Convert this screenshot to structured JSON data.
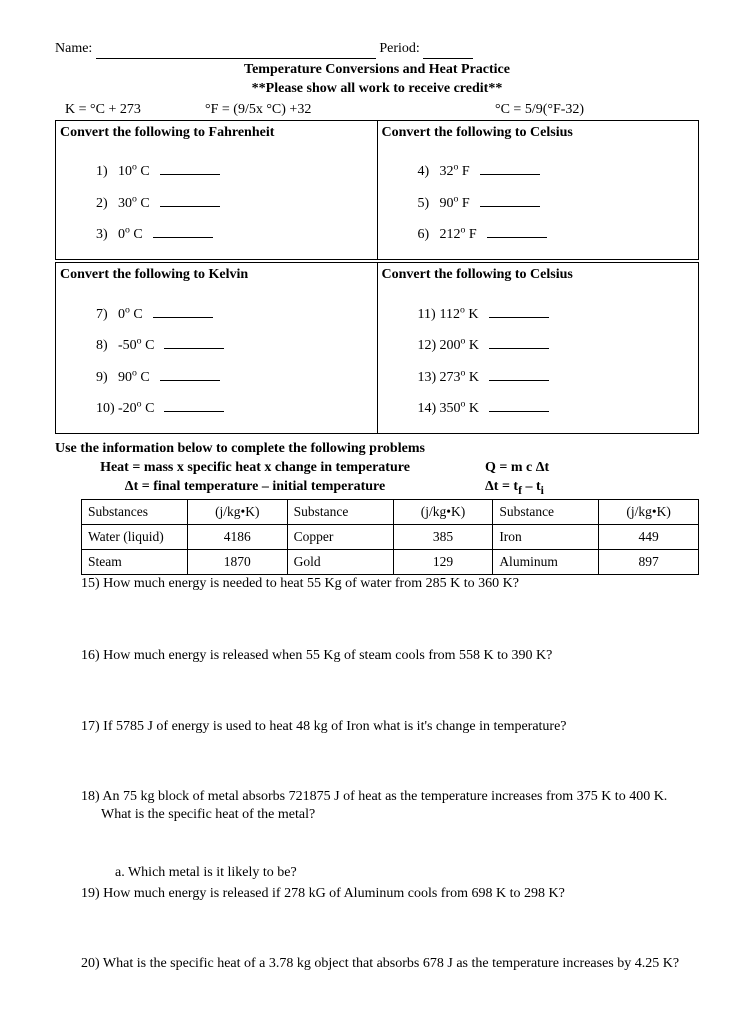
{
  "header": {
    "name_label": "Name:",
    "period_label": "Period:"
  },
  "title": {
    "line1": "Temperature Conversions and Heat Practice",
    "line2": "**Please show all work to receive credit**"
  },
  "formulas": {
    "f1": "K = °C + 273",
    "f2": "°F = (9/5x °C) +32",
    "f3": "°C = 5/9(°F-32)"
  },
  "conversion": {
    "boxes": [
      {
        "left_head": "Convert the following to Fahrenheit",
        "right_head": "Convert the following to Celsius",
        "left_items": [
          {
            "num": "1)",
            "val": "10",
            "unit": "C"
          },
          {
            "num": "2)",
            "val": "30",
            "unit": "C"
          },
          {
            "num": "3)",
            "val": "0",
            "unit": "C"
          }
        ],
        "right_items": [
          {
            "num": "4)",
            "val": "32",
            "unit": "F"
          },
          {
            "num": "5)",
            "val": "90",
            "unit": "F"
          },
          {
            "num": "6)",
            "val": "212",
            "unit": "F"
          }
        ]
      },
      {
        "left_head": "Convert the following to Kelvin",
        "right_head": "Convert the following to Celsius",
        "left_items": [
          {
            "num": "7)",
            "val": "0",
            "unit": "C"
          },
          {
            "num": "8)",
            "val": "-50",
            "unit": "C"
          },
          {
            "num": "9)",
            "val": "90",
            "unit": "C"
          },
          {
            "num": "10)",
            "val": "-20",
            "unit": "C"
          }
        ],
        "right_items": [
          {
            "num": "11)",
            "val": "112",
            "unit": "K"
          },
          {
            "num": "12)",
            "val": "200",
            "unit": "K"
          },
          {
            "num": "13)",
            "val": "273",
            "unit": "K"
          },
          {
            "num": "14)",
            "val": "350",
            "unit": "K"
          }
        ]
      }
    ]
  },
  "heat_section": {
    "intro": "Use the information below to complete the following problems",
    "heat_formula": "Heat = mass x specific heat x change in temperature",
    "q_formula": "Q = m c Δt",
    "dt_formula_left": "Δt = final temperature – initial temperature",
    "dt_formula_right": "Δt = tf – ti"
  },
  "specific_heat_table": {
    "headers": [
      "Substances",
      "(j/kg•K)",
      "Substance",
      "(j/kg•K)",
      "Substance",
      "(j/kg•K)"
    ],
    "rows": [
      [
        "Water (liquid)",
        "4186",
        "Copper",
        "385",
        "Iron",
        "449"
      ],
      [
        "Steam",
        "1870",
        "Gold",
        "129",
        "Aluminum",
        "897"
      ]
    ]
  },
  "problems": {
    "p15": "15) How much energy is needed to heat  55 Kg of water from 285 K to 360 K?",
    "p16": "16) How much energy is released when 55 Kg of steam cools from 558 K to 390 K?",
    "p17": "17) If 5785 J of energy is used to heat 48 kg of Iron what is it's change in temperature?",
    "p18a": "18) An 75 kg block of metal absorbs 721875 J of heat as the temperature increases from 375 K to 400 K.",
    "p18b": "What is the specific heat of the metal?",
    "p18sub": "a.    Which metal is it likely to be?",
    "p19": "19) How much energy is released if 278 kG of Aluminum cools from 698 K to 298 K?",
    "p20": "20) What is the specific heat of a 3.78 kg object that absorbs 678 J as the temperature increases by 4.25 K?"
  }
}
